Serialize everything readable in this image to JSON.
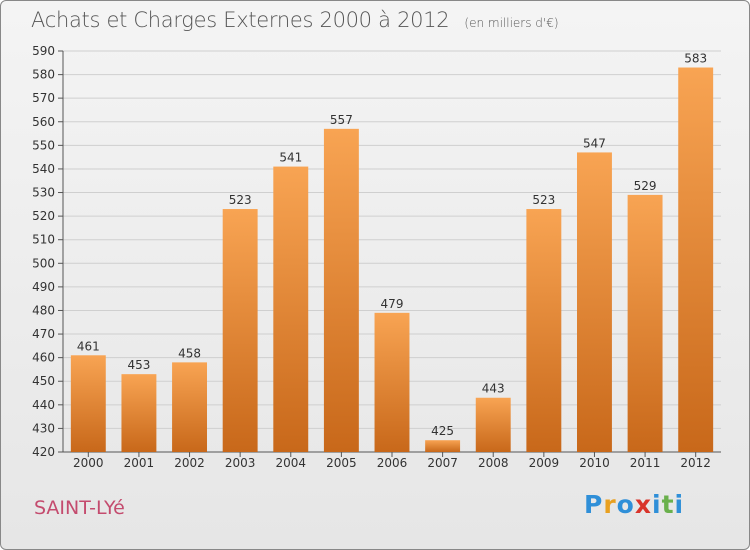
{
  "title": "Achats et Charges Externes 2000 à 2012",
  "unit": "(en milliers d'€)",
  "town": "SAINT-LYé",
  "logo": {
    "letters": [
      "P",
      "r",
      "o",
      "x",
      "i",
      "t",
      "i"
    ],
    "colors": [
      "#2f8fd8",
      "#e8a020",
      "#2f8fd8",
      "#d9342b",
      "#2f8fd8",
      "#6ab04c",
      "#2f8fd8"
    ]
  },
  "colors": {
    "bar_top": "#f8a453",
    "bar_bottom": "#c8681a",
    "grid": "#cfcfcf",
    "title": "#555555",
    "town": "#c44b6e"
  },
  "chart_data": {
    "type": "bar",
    "categories": [
      "2000",
      "2001",
      "2002",
      "2003",
      "2004",
      "2005",
      "2006",
      "2007",
      "2008",
      "2009",
      "2010",
      "2011",
      "2012"
    ],
    "values": [
      461,
      453,
      458,
      523,
      541,
      557,
      479,
      425,
      443,
      523,
      547,
      529,
      583
    ],
    "ylim": [
      420,
      590
    ],
    "yticks": [
      420,
      430,
      440,
      450,
      460,
      470,
      480,
      490,
      500,
      510,
      520,
      530,
      540,
      550,
      560,
      570,
      580,
      590
    ],
    "grid": true,
    "title": "Achats et Charges Externes 2000 à 2012",
    "xlabel": "",
    "ylabel": ""
  }
}
